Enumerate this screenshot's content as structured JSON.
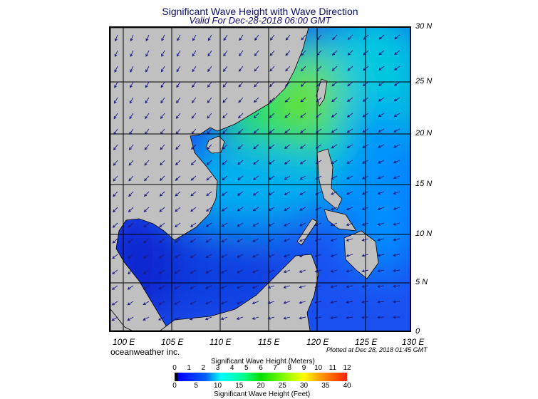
{
  "title": "Significant Wave Height with Wave Direction",
  "subtitle": "Valid For Dec-28-2018 06:00 GMT",
  "lat_labels": [
    "30 N",
    "25 N",
    "20 N",
    "15 N",
    "10 N",
    "5 N",
    "0"
  ],
  "lon_labels": [
    "100 E",
    "105 E",
    "110 E",
    "115 E",
    "120 E",
    "125 E",
    "130 E"
  ],
  "company": "oceanweather inc.",
  "plotted": "Plotted at Dec 28, 2018 01:45 GMT",
  "colorbar": {
    "meters_title": "Significant Wave Height (Meters)",
    "meters_ticks": [
      "0",
      "1",
      "2",
      "3",
      "4",
      "5",
      "6",
      "7",
      "8",
      "9",
      "10",
      "11",
      "12"
    ],
    "feet_ticks": [
      "0",
      "5",
      "10",
      "15",
      "20",
      "25",
      "30",
      "35",
      "40"
    ],
    "feet_title": "Significant Wave Height (Feet)",
    "colors": [
      "#000000",
      "#0000ff",
      "#00ffff",
      "#00e000",
      "#ffff00",
      "#ff2000"
    ]
  },
  "colors": {
    "land": "#c0c0c0",
    "grid": "#000000",
    "arrows": "#1a1a80"
  }
}
